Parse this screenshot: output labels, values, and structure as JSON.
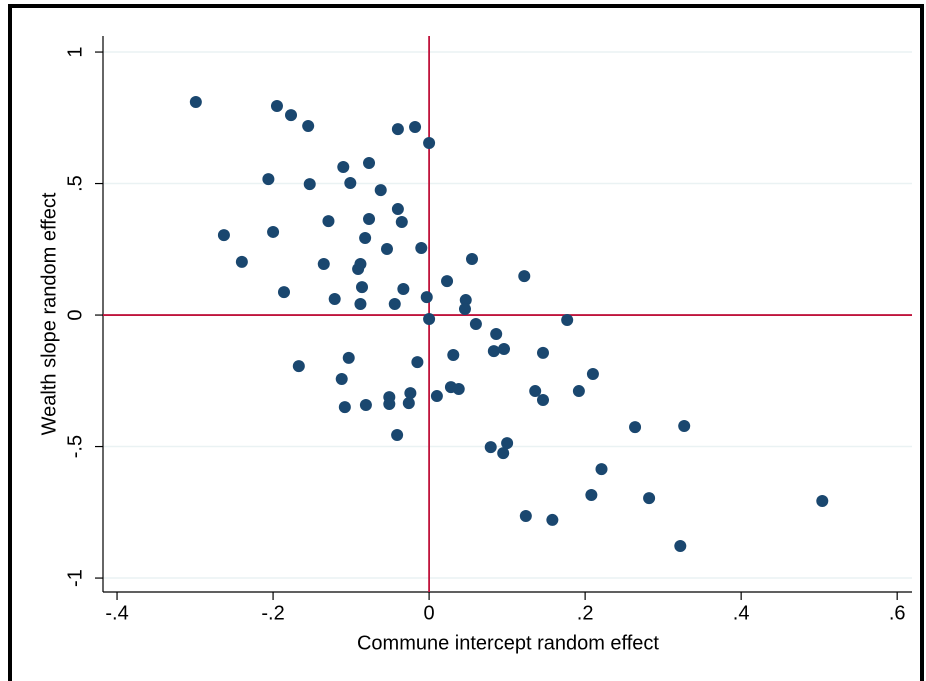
{
  "chart_data": {
    "type": "scatter",
    "x_label": "Commune intercept random effect",
    "y_label": "Wealth slope random effect",
    "xlim": [
      -0.418,
      0.619
    ],
    "ylim": [
      -1.053,
      1.061
    ],
    "xticks": [
      {
        "value": -0.4,
        "label": "-.4"
      },
      {
        "value": -0.2,
        "label": "-.2"
      },
      0,
      {
        "value": 0.2,
        "label": ".2"
      },
      {
        "value": 0.4,
        "label": ".4"
      },
      {
        "value": 0.6,
        "label": ".6"
      }
    ],
    "yticks": [
      {
        "value": -1,
        "label": "-1"
      },
      {
        "value": -0.5,
        "label": "-.5"
      },
      0,
      {
        "value": 0.5,
        "label": ".5"
      },
      1
    ],
    "grid": true,
    "reference_x": 0,
    "reference_y": 0,
    "reference_color": "#c0143c",
    "series": [
      {
        "color": "#1a476f",
        "x": [
          -0.299,
          -0.195,
          -0.177,
          -0.155,
          -0.04,
          -0.018,
          0.0,
          -0.11,
          -0.077,
          -0.206,
          -0.153,
          -0.101,
          -0.062,
          -0.04,
          -0.129,
          -0.077,
          -0.035,
          -0.263,
          -0.2,
          -0.082,
          -0.054,
          -0.01,
          -0.24,
          -0.135,
          -0.088,
          -0.091,
          0.055,
          -0.086,
          -0.033,
          0.023,
          0.122,
          -0.186,
          -0.121,
          -0.088,
          -0.044,
          -0.003,
          0.047,
          0.046,
          0.0,
          0.06,
          0.177,
          0.086,
          0.083,
          0.096,
          0.146,
          0.031,
          -0.103,
          -0.015,
          -0.167,
          0.21,
          -0.112,
          0.028,
          0.038,
          0.136,
          0.192,
          -0.024,
          -0.051,
          0.01,
          0.146,
          -0.108,
          -0.081,
          -0.051,
          -0.026,
          0.264,
          0.327,
          -0.041,
          0.079,
          0.1,
          0.095,
          0.221,
          0.208,
          0.282,
          0.504,
          0.124,
          0.158,
          0.322
        ],
        "values": [
          0.81,
          0.795,
          0.76,
          0.719,
          0.707,
          0.715,
          0.654,
          0.563,
          0.578,
          0.517,
          0.498,
          0.502,
          0.475,
          0.403,
          0.357,
          0.365,
          0.354,
          0.304,
          0.316,
          0.293,
          0.251,
          0.255,
          0.202,
          0.194,
          0.194,
          0.175,
          0.213,
          0.106,
          0.099,
          0.129,
          0.148,
          0.087,
          0.061,
          0.042,
          0.042,
          0.068,
          0.057,
          0.023,
          -0.015,
          -0.034,
          -0.019,
          -0.072,
          -0.137,
          -0.129,
          -0.144,
          -0.152,
          -0.163,
          -0.179,
          -0.194,
          -0.224,
          -0.243,
          -0.274,
          -0.281,
          -0.289,
          -0.289,
          -0.297,
          -0.312,
          -0.308,
          -0.323,
          -0.35,
          -0.342,
          -0.338,
          -0.335,
          -0.426,
          -0.422,
          -0.456,
          -0.502,
          -0.487,
          -0.525,
          -0.586,
          -0.684,
          -0.696,
          -0.707,
          -0.764,
          -0.779,
          -0.878
        ]
      }
    ]
  }
}
